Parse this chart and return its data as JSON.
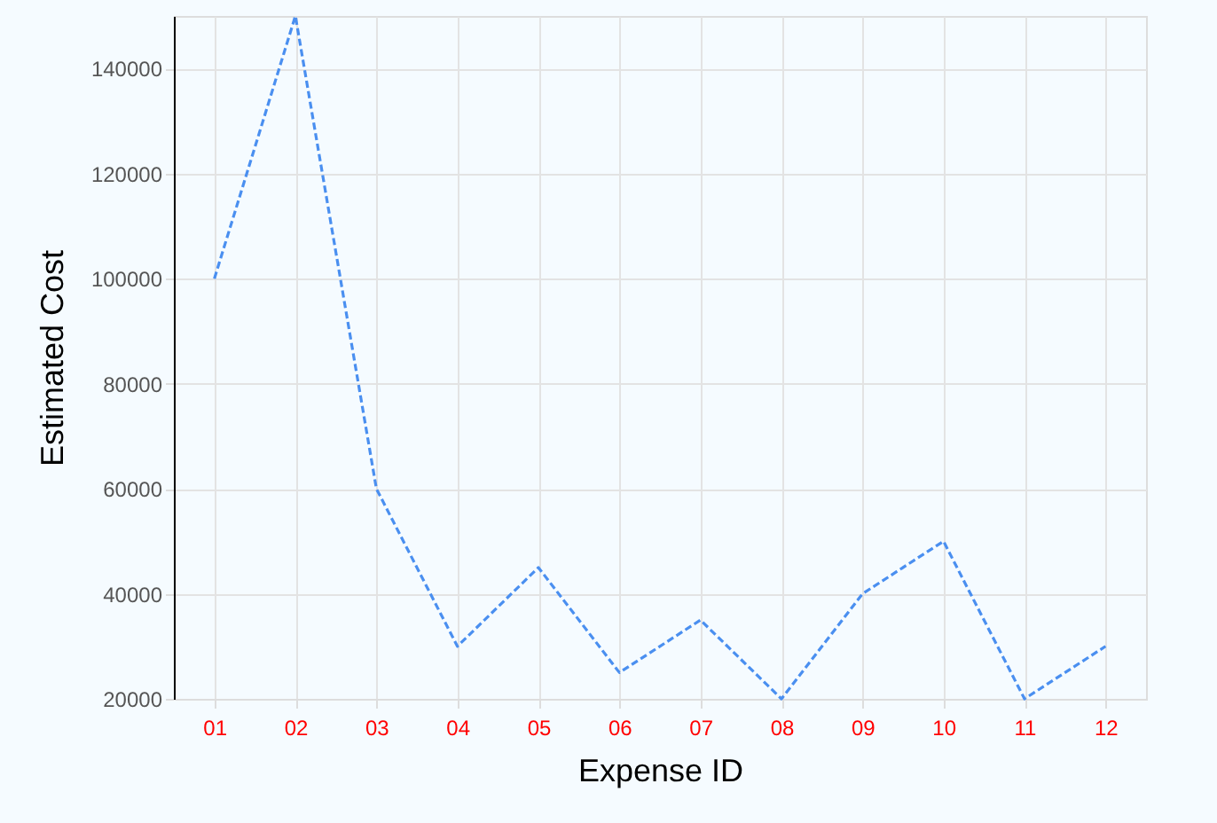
{
  "chart_data": {
    "type": "line",
    "xlabel": "Expense ID",
    "ylabel": "Estimated Cost",
    "categories": [
      "01",
      "02",
      "03",
      "04",
      "05",
      "06",
      "07",
      "08",
      "09",
      "10",
      "11",
      "12"
    ],
    "series": [
      {
        "color": "#4a8ff0",
        "values": [
          100000,
          150000,
          60000,
          30000,
          45000,
          25000,
          35000,
          20000,
          40000,
          50000,
          20000,
          30000
        ]
      }
    ],
    "ylim": [
      20000,
      150000
    ],
    "yticks": [
      20000,
      40000,
      60000,
      80000,
      100000,
      120000,
      140000
    ],
    "grid": true,
    "line_style": "dashed",
    "marker": "none"
  }
}
